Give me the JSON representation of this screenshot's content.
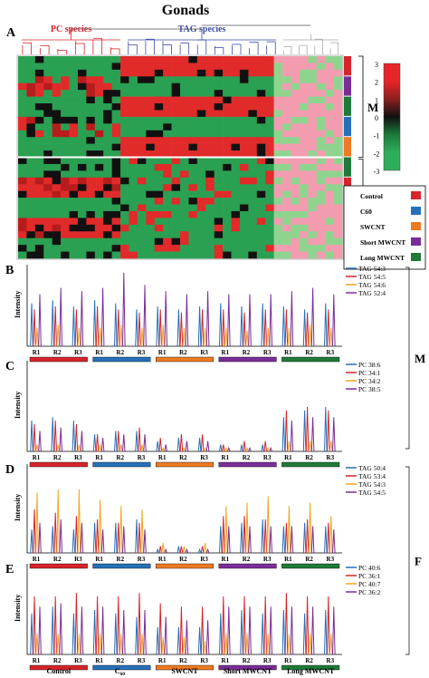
{
  "figure": {
    "title": "Gonads",
    "panel_letters": [
      "A",
      "B",
      "C",
      "D",
      "E"
    ],
    "group_labels": [
      "Control",
      "C60",
      "SWCNT",
      "Short MWCNT",
      "Long MWCNT"
    ],
    "group_colors": [
      "#d6242a",
      "#2670b8",
      "#ee7a22",
      "#7a2d98",
      "#1f7a3a"
    ],
    "replicate_labels": [
      "R1",
      "R2",
      "R3"
    ],
    "intensity_label": "Intensity",
    "sex_labels": {
      "male": "M",
      "female": "F"
    }
  },
  "chart_data": [
    {
      "panel": "A",
      "type": "heatmap",
      "title": "Gonads",
      "column_groups": [
        {
          "name": "PC species",
          "color": "#d6242a",
          "columns": 12
        },
        {
          "name": "TAG species",
          "color": "#3b4aa8",
          "columns": 18
        },
        {
          "name": "",
          "color": "#aaaaaa",
          "columns": 8
        }
      ],
      "row_blocks": [
        {
          "name": "M",
          "rows": 15
        },
        {
          "name": "F",
          "rows": 15
        }
      ],
      "colorscale": {
        "ticks": [
          3,
          2,
          1,
          0,
          -1,
          -2,
          -3
        ],
        "colors": [
          "#e6242a",
          "#e6242a",
          "#8a1f1f",
          "#111111",
          "#1d7a3b",
          "#2eae59",
          "#2eae59"
        ]
      },
      "legend": {
        "entries": [
          "Control",
          "C60",
          "SWCNT",
          "Short MWCNT",
          "Long MWCNT"
        ],
        "colors": [
          "#d6242a",
          "#2670b8",
          "#ee7a22",
          "#7a2d98",
          "#1f7a3a"
        ],
        "placement": "right"
      }
    },
    {
      "panel": "B",
      "type": "line",
      "ylabel": "Intensity",
      "series": [
        {
          "name": "TAG 54:3",
          "color": "#2670b8",
          "values": [
            14,
            15,
            13,
            15,
            14,
            12,
            13,
            12,
            13,
            14,
            13,
            14,
            13,
            12,
            14
          ]
        },
        {
          "name": "TAG 54:5",
          "color": "#d6242a",
          "values": [
            12,
            13,
            12,
            13,
            12,
            11,
            12,
            11,
            12,
            12,
            11,
            12,
            12,
            11,
            12
          ]
        },
        {
          "name": "TAG 54:6",
          "color": "#f2a51f",
          "values": [
            6,
            7,
            6,
            6,
            7,
            6,
            7,
            6,
            6,
            6,
            5,
            6,
            6,
            7,
            6
          ]
        },
        {
          "name": "TAG 52:4",
          "color": "#7a2d98",
          "values": [
            17,
            19,
            18,
            19,
            24,
            20,
            18,
            17,
            18,
            17,
            17,
            17,
            18,
            19,
            17
          ]
        }
      ]
    },
    {
      "panel": "C",
      "type": "line",
      "ylabel": "Intensity",
      "series": [
        {
          "name": "PC 38:6",
          "color": "#2670b8",
          "values": [
            9,
            10,
            9,
            5,
            6,
            6,
            3,
            4,
            4,
            2,
            2,
            2,
            10,
            12,
            13
          ]
        },
        {
          "name": "PC 34:1",
          "color": "#d6242a",
          "values": [
            8,
            9,
            8,
            5,
            6,
            7,
            4,
            5,
            5,
            2,
            3,
            3,
            12,
            13,
            12
          ]
        },
        {
          "name": "PC 34:2",
          "color": "#f2a51f",
          "values": [
            2,
            2,
            2,
            2,
            2,
            2,
            1,
            1,
            1,
            1,
            1,
            1,
            3,
            3,
            3
          ]
        },
        {
          "name": "PC 38:5",
          "color": "#7a2d98",
          "values": [
            6,
            7,
            6,
            4,
            5,
            5,
            2,
            3,
            3,
            1,
            1,
            1,
            9,
            10,
            10
          ]
        }
      ]
    },
    {
      "panel": "D",
      "type": "line",
      "ylabel": "Intensity",
      "series": [
        {
          "name": "TAG 50:4",
          "color": "#2670b8",
          "values": [
            7,
            8,
            7,
            9,
            9,
            10,
            1,
            2,
            1,
            8,
            9,
            10,
            8,
            9,
            8
          ]
        },
        {
          "name": "TAG 53:4",
          "color": "#d6242a",
          "values": [
            13,
            12,
            11,
            10,
            9,
            9,
            2,
            2,
            2,
            11,
            11,
            10,
            9,
            10,
            9
          ]
        },
        {
          "name": "TAG 54:3",
          "color": "#f2a51f",
          "values": [
            18,
            19,
            19,
            16,
            14,
            13,
            3,
            2,
            3,
            14,
            15,
            17,
            14,
            15,
            11
          ]
        },
        {
          "name": "TAG 54:5",
          "color": "#7a2d98",
          "values": [
            9,
            10,
            9,
            7,
            8,
            7,
            1,
            1,
            1,
            8,
            8,
            8,
            8,
            8,
            7
          ]
        }
      ]
    },
    {
      "panel": "E",
      "type": "line",
      "ylabel": "Intensity",
      "series": [
        {
          "name": "PC 40:6",
          "color": "#2670b8",
          "values": [
            12,
            14,
            12,
            13,
            12,
            11,
            8,
            8,
            8,
            12,
            13,
            12,
            13,
            12,
            13
          ]
        },
        {
          "name": "PC 36:1",
          "color": "#d6242a",
          "values": [
            17,
            17,
            18,
            17,
            17,
            18,
            15,
            14,
            14,
            17,
            17,
            17,
            18,
            17,
            17
          ]
        },
        {
          "name": "PC 40:7",
          "color": "#f2a51f",
          "values": [
            6,
            6,
            6,
            6,
            6,
            6,
            5,
            5,
            4,
            6,
            6,
            6,
            6,
            6,
            6
          ]
        },
        {
          "name": "PC 36:2",
          "color": "#7a2d98",
          "values": [
            14,
            15,
            14,
            14,
            13,
            13,
            11,
            10,
            10,
            14,
            14,
            14,
            14,
            14,
            14
          ]
        }
      ]
    }
  ]
}
